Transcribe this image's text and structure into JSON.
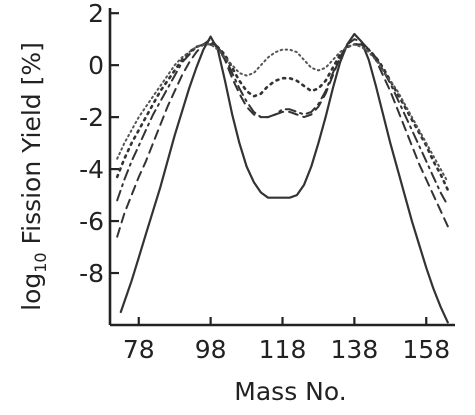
{
  "chart_data": {
    "type": "line",
    "title": "",
    "xlabel": "Mass No.",
    "ylabel": "log10 Fission Yield [%]",
    "ylabel_parts": {
      "prefix": "log",
      "subscript": "10",
      "suffix": " Fission Yield [%]"
    },
    "xlim": [
      70,
      166
    ],
    "ylim": [
      -10,
      2.2
    ],
    "x_ticks": [
      78,
      98,
      118,
      138,
      158
    ],
    "x_tick_labels": [
      "78",
      "98",
      "118",
      "138",
      "158"
    ],
    "y_ticks": [
      2,
      0,
      -2,
      -4,
      -6,
      -8
    ],
    "y_tick_labels": [
      "2",
      "0",
      "-2",
      "-4",
      "-6",
      "-8"
    ],
    "grid": false,
    "legend": "none",
    "series": [
      {
        "style": "solid",
        "color": "#333333",
        "x": [
          73,
          76,
          78,
          80,
          82,
          84,
          86,
          88,
          90,
          92,
          94,
          96,
          98,
          100,
          102,
          104,
          106,
          108,
          110,
          112,
          114,
          116,
          118,
          120,
          122,
          124,
          126,
          128,
          130,
          132,
          134,
          136,
          138,
          140,
          142,
          144,
          146,
          148,
          150,
          152,
          154,
          156,
          158,
          160,
          162,
          164
        ],
        "y": [
          -9.5,
          -8.3,
          -7.4,
          -6.5,
          -5.6,
          -4.7,
          -3.7,
          -2.7,
          -1.8,
          -0.9,
          -0.1,
          0.6,
          1.1,
          0.6,
          -0.6,
          -1.9,
          -3.0,
          -3.9,
          -4.5,
          -4.9,
          -5.1,
          -5.1,
          -5.1,
          -5.1,
          -5.0,
          -4.6,
          -3.9,
          -3.0,
          -2.0,
          -0.9,
          0.1,
          0.8,
          1.2,
          0.9,
          0.2,
          -0.8,
          -1.9,
          -3.0,
          -4.0,
          -5.0,
          -6.0,
          -6.9,
          -7.8,
          -8.6,
          -9.3,
          -9.9
        ]
      },
      {
        "style": "dash",
        "color": "#333333",
        "x": [
          72,
          74,
          76,
          78,
          80,
          82,
          84,
          86,
          88,
          90,
          92,
          94,
          96,
          98,
          100,
          102,
          104,
          106,
          108,
          110,
          112,
          114,
          116,
          118,
          120,
          122,
          124,
          126,
          128,
          130,
          132,
          134,
          136,
          138,
          140,
          142,
          144,
          146,
          148,
          150,
          152,
          154,
          156,
          158,
          160,
          162,
          164
        ],
        "y": [
          -6.6,
          -5.7,
          -5.0,
          -4.3,
          -3.7,
          -3.0,
          -2.3,
          -1.6,
          -1.0,
          -0.4,
          0.1,
          0.5,
          0.8,
          1.0,
          0.7,
          0.2,
          -0.5,
          -1.1,
          -1.6,
          -1.9,
          -2.0,
          -2.0,
          -1.9,
          -1.8,
          -1.8,
          -1.9,
          -2.0,
          -1.9,
          -1.6,
          -1.1,
          -0.4,
          0.3,
          0.8,
          1.0,
          0.9,
          0.6,
          0.2,
          -0.4,
          -1.0,
          -1.7,
          -2.4,
          -3.1,
          -3.8,
          -4.4,
          -5.0,
          -5.6,
          -6.2
        ]
      },
      {
        "style": "dash-dot",
        "color": "#333333",
        "x": [
          72,
          74,
          76,
          78,
          80,
          82,
          84,
          86,
          88,
          90,
          92,
          94,
          96,
          98,
          100,
          102,
          104,
          106,
          108,
          110,
          112,
          114,
          116,
          118,
          120,
          122,
          124,
          126,
          128,
          130,
          132,
          134,
          136,
          138,
          140,
          142,
          144,
          146,
          148,
          150,
          152,
          154,
          156,
          158,
          160,
          162,
          164
        ],
        "y": [
          -5.2,
          -4.4,
          -3.7,
          -3.1,
          -2.5,
          -1.9,
          -1.4,
          -0.9,
          -0.4,
          0.1,
          0.4,
          0.7,
          0.8,
          0.9,
          0.7,
          0.3,
          -0.3,
          -0.9,
          -1.4,
          -1.8,
          -2.0,
          -2.0,
          -1.9,
          -1.7,
          -1.7,
          -1.8,
          -1.9,
          -1.8,
          -1.5,
          -1.0,
          -0.3,
          0.3,
          0.7,
          0.8,
          0.8,
          0.6,
          0.3,
          -0.2,
          -0.7,
          -1.3,
          -1.9,
          -2.5,
          -3.1,
          -3.7,
          -4.3,
          -4.9,
          -5.4
        ]
      },
      {
        "style": "dot",
        "color": "#333333",
        "x": [
          72,
          74,
          76,
          78,
          80,
          82,
          84,
          86,
          88,
          90,
          92,
          94,
          96,
          98,
          100,
          102,
          104,
          106,
          108,
          110,
          112,
          114,
          116,
          118,
          120,
          122,
          124,
          126,
          128,
          130,
          132,
          134,
          136,
          138,
          140,
          142,
          144,
          146,
          148,
          150,
          152,
          154,
          156,
          158,
          160,
          162,
          164
        ],
        "y": [
          -4.3,
          -3.6,
          -3.0,
          -2.5,
          -2.0,
          -1.5,
          -1.0,
          -0.6,
          -0.2,
          0.2,
          0.5,
          0.7,
          0.8,
          0.8,
          0.7,
          0.4,
          -0.1,
          -0.6,
          -1.0,
          -1.2,
          -1.1,
          -0.8,
          -0.6,
          -0.5,
          -0.5,
          -0.6,
          -0.8,
          -1.0,
          -0.9,
          -0.6,
          -0.1,
          0.4,
          0.7,
          0.8,
          0.8,
          0.6,
          0.3,
          -0.1,
          -0.6,
          -1.1,
          -1.6,
          -2.1,
          -2.6,
          -3.1,
          -3.7,
          -4.2,
          -4.8
        ]
      },
      {
        "style": "fine-dot",
        "color": "#555555",
        "x": [
          72,
          74,
          76,
          78,
          80,
          82,
          84,
          86,
          88,
          90,
          92,
          94,
          96,
          98,
          100,
          102,
          104,
          106,
          108,
          110,
          112,
          114,
          116,
          118,
          120,
          122,
          124,
          126,
          128,
          130,
          132,
          134,
          136,
          138,
          140,
          142,
          144,
          146,
          148,
          150,
          152,
          154,
          156,
          158,
          160,
          162,
          164
        ],
        "y": [
          -3.6,
          -3.0,
          -2.5,
          -2.0,
          -1.6,
          -1.2,
          -0.8,
          -0.4,
          0.0,
          0.3,
          0.5,
          0.7,
          0.8,
          0.8,
          0.6,
          0.3,
          0.0,
          -0.3,
          -0.4,
          -0.3,
          0.0,
          0.3,
          0.5,
          0.6,
          0.6,
          0.5,
          0.2,
          -0.1,
          -0.2,
          -0.1,
          0.2,
          0.5,
          0.7,
          0.8,
          0.7,
          0.5,
          0.2,
          -0.2,
          -0.6,
          -1.0,
          -1.5,
          -2.0,
          -2.5,
          -3.0,
          -3.5,
          -4.0,
          -4.5
        ]
      }
    ]
  }
}
